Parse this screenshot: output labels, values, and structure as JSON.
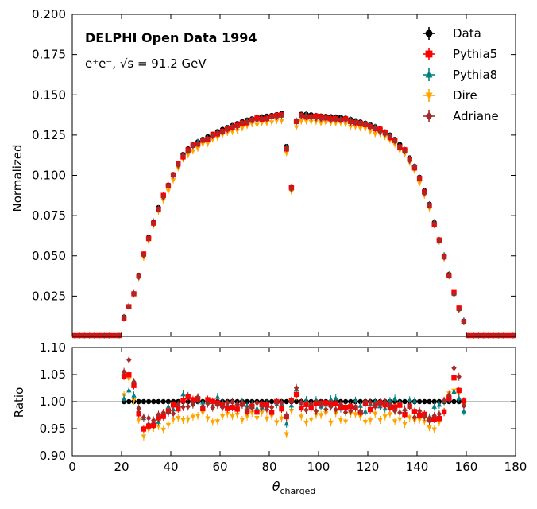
{
  "chart_data": {
    "type": "scatter",
    "experiment": "DELPHI Open Data 1994",
    "process": "e⁺e⁻, √s = 91.2 GeV",
    "xlabel": "θ",
    "xlabel_sub": "charged",
    "xlim": [
      0,
      180
    ],
    "x_ticks": [
      "0",
      "20",
      "40",
      "60",
      "80",
      "100",
      "120",
      "140",
      "160",
      "180"
    ],
    "main": {
      "ylabel": "Normalized",
      "ylim": [
        0.0,
        0.2
      ],
      "y_ticks": [
        "0.025",
        "0.050",
        "0.075",
        "0.100",
        "0.125",
        "0.150",
        "0.175",
        "0.200"
      ],
      "shape_anchors": [
        [
          0,
          0
        ],
        [
          20,
          0
        ],
        [
          20,
          0.009
        ],
        [
          22,
          0.015
        ],
        [
          24,
          0.022
        ],
        [
          26,
          0.031
        ],
        [
          28,
          0.045
        ],
        [
          30,
          0.057
        ],
        [
          32,
          0.066
        ],
        [
          34,
          0.076
        ],
        [
          36,
          0.084
        ],
        [
          38,
          0.091
        ],
        [
          40,
          0.097
        ],
        [
          42,
          0.104
        ],
        [
          44,
          0.111
        ],
        [
          46,
          0.115
        ],
        [
          48,
          0.118
        ],
        [
          50,
          0.12
        ],
        [
          55,
          0.124
        ],
        [
          60,
          0.128
        ],
        [
          65,
          0.131
        ],
        [
          70,
          0.134
        ],
        [
          75,
          0.136
        ],
        [
          80,
          0.137
        ],
        [
          84,
          0.138
        ],
        [
          86,
          0.139
        ],
        [
          87,
          0.118
        ],
        [
          88,
          0.124
        ],
        [
          89,
          0.093
        ],
        [
          90,
          0.124
        ],
        [
          91,
          0.134
        ],
        [
          92,
          0.138
        ],
        [
          95,
          0.138
        ],
        [
          100,
          0.137
        ],
        [
          110,
          0.136
        ],
        [
          120,
          0.132
        ],
        [
          125,
          0.129
        ],
        [
          130,
          0.124
        ],
        [
          135,
          0.116
        ],
        [
          140,
          0.103
        ],
        [
          145,
          0.082
        ],
        [
          148,
          0.065
        ],
        [
          150,
          0.055
        ],
        [
          152,
          0.045
        ],
        [
          154,
          0.032
        ],
        [
          156,
          0.022
        ],
        [
          158,
          0.012
        ],
        [
          160,
          0.007
        ],
        [
          160,
          0
        ],
        [
          180,
          0
        ]
      ],
      "series": [
        {
          "name": "Data",
          "color": "#000000",
          "marker": "circle",
          "scale": 1.0
        },
        {
          "name": "Pythia5",
          "color": "#ff0000",
          "marker": "square",
          "scale": 0.992
        },
        {
          "name": "Pythia8",
          "color": "#008080",
          "marker": "triangle-up",
          "scale": 0.995
        },
        {
          "name": "Dire",
          "color": "#ffa500",
          "marker": "triangle-down",
          "scale": 0.97
        },
        {
          "name": "Adriane",
          "color": "#a52a2a",
          "marker": "diamond",
          "scale": 0.99
        }
      ]
    },
    "ratio": {
      "ylabel": "Ratio",
      "ylim": [
        0.9,
        1.1
      ],
      "y_ticks": [
        "0.90",
        "0.95",
        "1.00",
        "1.05",
        "1.10"
      ],
      "reference_line": 1.0,
      "profiles": [
        {
          "name": "Data",
          "anchors": [
            [
              20,
              1.0
            ],
            [
              160,
              1.0
            ]
          ]
        },
        {
          "name": "Pythia5",
          "anchors": [
            [
              20,
              1.03
            ],
            [
              22,
              1.06
            ],
            [
              24,
              1.05
            ],
            [
              26,
              1.01
            ],
            [
              28,
              0.96
            ],
            [
              30,
              0.95
            ],
            [
              35,
              0.96
            ],
            [
              40,
              0.98
            ],
            [
              45,
              1.0
            ],
            [
              50,
              1.0
            ],
            [
              60,
              0.99
            ],
            [
              70,
              0.99
            ],
            [
              80,
              0.99
            ],
            [
              86,
              0.99
            ],
            [
              88,
              0.94
            ],
            [
              90,
              1.05
            ],
            [
              92,
              0.99
            ],
            [
              100,
              0.99
            ],
            [
              120,
              0.99
            ],
            [
              130,
              0.99
            ],
            [
              140,
              0.98
            ],
            [
              145,
              0.97
            ],
            [
              150,
              0.98
            ],
            [
              152,
              0.99
            ],
            [
              154,
              1.04
            ],
            [
              156,
              1.06
            ],
            [
              158,
              1.0
            ]
          ]
        },
        {
          "name": "Pythia8",
          "anchors": [
            [
              20,
              0.97
            ],
            [
              22,
              1.03
            ],
            [
              24,
              1.02
            ],
            [
              26,
              0.99
            ],
            [
              28,
              0.96
            ],
            [
              30,
              0.96
            ],
            [
              35,
              0.97
            ],
            [
              40,
              0.99
            ],
            [
              45,
              1.01
            ],
            [
              50,
              1.0
            ],
            [
              60,
              1.0
            ],
            [
              70,
              0.99
            ],
            [
              80,
              0.99
            ],
            [
              86,
              0.99
            ],
            [
              88,
              0.93
            ],
            [
              90,
              1.04
            ],
            [
              92,
              0.99
            ],
            [
              100,
              1.0
            ],
            [
              120,
              0.99
            ],
            [
              130,
              1.0
            ],
            [
              140,
              0.99
            ],
            [
              145,
              0.98
            ],
            [
              150,
              0.99
            ],
            [
              154,
              1.01
            ],
            [
              156,
              1.03
            ],
            [
              158,
              0.99
            ]
          ]
        },
        {
          "name": "Dire",
          "anchors": [
            [
              20,
              0.98
            ],
            [
              22,
              1.05
            ],
            [
              24,
              1.02
            ],
            [
              26,
              0.98
            ],
            [
              28,
              0.94
            ],
            [
              30,
              0.94
            ],
            [
              35,
              0.95
            ],
            [
              40,
              0.96
            ],
            [
              45,
              0.97
            ],
            [
              50,
              0.97
            ],
            [
              60,
              0.97
            ],
            [
              70,
              0.97
            ],
            [
              80,
              0.97
            ],
            [
              86,
              0.97
            ],
            [
              88,
              0.92
            ],
            [
              90,
              1.03
            ],
            [
              92,
              0.97
            ],
            [
              100,
              0.97
            ],
            [
              120,
              0.97
            ],
            [
              130,
              0.97
            ],
            [
              140,
              0.96
            ],
            [
              145,
              0.95
            ],
            [
              150,
              0.96
            ],
            [
              154,
              1.02
            ],
            [
              156,
              1.04
            ],
            [
              158,
              0.99
            ]
          ]
        },
        {
          "name": "Adriane",
          "anchors": [
            [
              20,
              1.01
            ],
            [
              22,
              1.1
            ],
            [
              24,
              1.06
            ],
            [
              26,
              1.0
            ],
            [
              28,
              0.97
            ],
            [
              30,
              0.96
            ],
            [
              35,
              0.97
            ],
            [
              40,
              0.98
            ],
            [
              45,
              1.0
            ],
            [
              50,
              1.0
            ],
            [
              60,
              0.99
            ],
            [
              70,
              0.99
            ],
            [
              80,
              0.99
            ],
            [
              86,
              0.99
            ],
            [
              88,
              0.94
            ],
            [
              90,
              1.05
            ],
            [
              92,
              0.99
            ],
            [
              100,
              0.99
            ],
            [
              120,
              0.99
            ],
            [
              130,
              0.99
            ],
            [
              140,
              0.98
            ],
            [
              145,
              0.97
            ],
            [
              150,
              0.98
            ],
            [
              154,
              1.03
            ],
            [
              156,
              1.1
            ],
            [
              158,
              1.0
            ]
          ]
        }
      ]
    }
  }
}
